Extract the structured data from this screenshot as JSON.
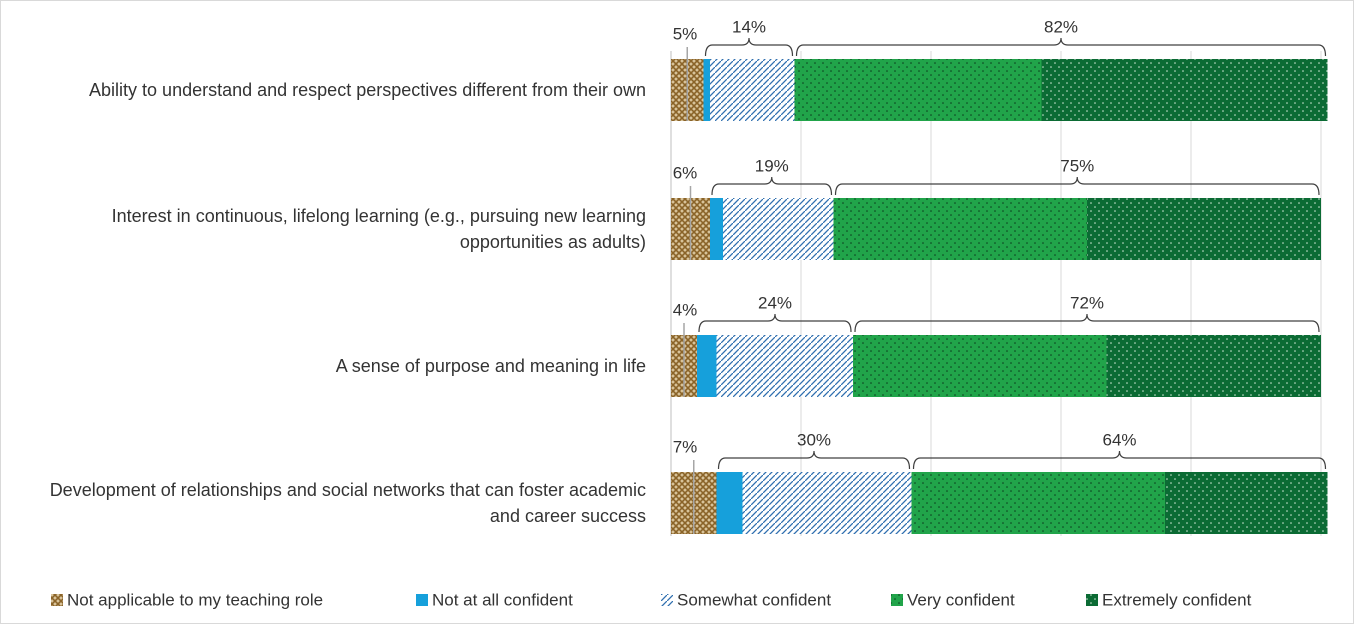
{
  "chart_data": {
    "type": "bar",
    "orientation": "horizontal",
    "stacked": true,
    "categories": [
      "Ability to understand and respect perspectives different from their own",
      "Interest in continuous, lifelong learning (e.g., pursuing new learning opportunities as adults)",
      "A sense of purpose and meaning in life",
      "Development of relationships and social networks that can foster academic and career success"
    ],
    "series": [
      {
        "name": "Not applicable to my teaching role",
        "color": "#a0783a",
        "values": [
          5,
          6,
          4,
          7
        ]
      },
      {
        "name": "Not at all confident",
        "color": "#16a0db",
        "values": [
          1,
          2,
          3,
          4
        ]
      },
      {
        "name": "Somewhat confident",
        "color": "#2f6fb0",
        "values": [
          13,
          17,
          21,
          26
        ]
      },
      {
        "name": "Very confident",
        "color": "#21a44a",
        "values": [
          38,
          39,
          39,
          39
        ]
      },
      {
        "name": "Extremely confident",
        "color": "#0b6b34",
        "values": [
          44,
          36,
          33,
          25
        ]
      }
    ],
    "group_totals": [
      [
        {
          "value": 5,
          "label": "5%"
        },
        {
          "value": 6,
          "label": "6%"
        },
        {
          "value": 4,
          "label": "4%"
        },
        {
          "value": 7,
          "label": "7%"
        }
      ],
      [
        {
          "value": 14,
          "label": "14%"
        },
        {
          "value": 19,
          "label": "19%"
        },
        {
          "value": 24,
          "label": "24%"
        },
        {
          "value": 30,
          "label": "30%"
        }
      ],
      [
        {
          "value": 82,
          "label": "82%"
        },
        {
          "value": 75,
          "label": "75%"
        },
        {
          "value": 72,
          "label": "72%"
        },
        {
          "value": 64,
          "label": "64%"
        }
      ]
    ],
    "xlim": [
      0,
      100
    ],
    "xticks": [
      0,
      20,
      40,
      60,
      80,
      100
    ],
    "grid": true,
    "legend": "bottom"
  }
}
